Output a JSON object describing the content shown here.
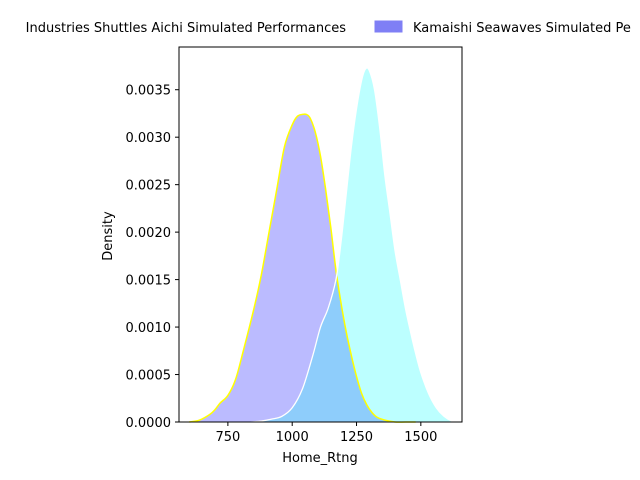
{
  "chart_data": {
    "type": "area",
    "xlabel": "Home_Rtng",
    "ylabel": "Density",
    "xlim": [
      560,
      1660
    ],
    "ylim": [
      0,
      0.00395
    ],
    "xticks": [
      750,
      1000,
      1250,
      1500
    ],
    "xtick_labels": [
      "750",
      "1000",
      "1250",
      "1500"
    ],
    "yticks": [
      0.0,
      0.0005,
      0.001,
      0.0015,
      0.002,
      0.0025,
      0.003,
      0.0035
    ],
    "ytick_labels": [
      "0.0000",
      "0.0005",
      "0.0010",
      "0.0015",
      "0.0020",
      "0.0025",
      "0.0030",
      "0.0035"
    ],
    "legend": {
      "placement": "top-center",
      "entries": [
        "Industries Shuttles Aichi Simulated Performances",
        "Kamaishi Seawaves Simulated Pe"
      ]
    },
    "series": [
      {
        "name": "Industries Shuttles Aichi Simulated Performances",
        "fill": "#bbbbff",
        "edge": "#ffff00",
        "x": [
          600,
          640,
          680,
          700,
          720,
          750,
          780,
          810,
          850,
          880,
          910,
          940,
          970,
          1000,
          1020,
          1040,
          1055,
          1070,
          1090,
          1110,
          1130,
          1150,
          1170,
          1190,
          1210,
          1230,
          1250,
          1270,
          1290,
          1310,
          1330,
          1360,
          1400,
          1440,
          1480
        ],
        "values": [
          0.0,
          2e-05,
          8e-05,
          0.00013,
          0.0002,
          0.00028,
          0.00045,
          0.00075,
          0.00118,
          0.00155,
          0.002,
          0.00245,
          0.0029,
          0.00313,
          0.00322,
          0.00324,
          0.00324,
          0.0032,
          0.00305,
          0.0028,
          0.00245,
          0.00205,
          0.0016,
          0.00125,
          0.00095,
          0.0007,
          0.00048,
          0.0003,
          0.00018,
          0.0001,
          5e-05,
          2e-05,
          0.0,
          0.0,
          0.0
        ]
      },
      {
        "name": "Kamaishi Seawaves Simulated Pe",
        "fill": "#b8ffff",
        "edge": "#ffffff",
        "x": [
          840,
          880,
          920,
          960,
          1000,
          1040,
          1080,
          1110,
          1140,
          1170,
          1190,
          1210,
          1230,
          1250,
          1270,
          1285,
          1300,
          1320,
          1340,
          1360,
          1380,
          1400,
          1420,
          1440,
          1460,
          1480,
          1500,
          1530,
          1560,
          1590,
          1620,
          1640
        ],
        "values": [
          0.0,
          1e-05,
          3e-05,
          6e-05,
          0.00015,
          0.00035,
          0.0007,
          0.001,
          0.0012,
          0.0015,
          0.0019,
          0.0024,
          0.0029,
          0.0033,
          0.0036,
          0.00372,
          0.0037,
          0.0035,
          0.0031,
          0.0026,
          0.0022,
          0.0018,
          0.0015,
          0.0012,
          0.00095,
          0.00072,
          0.00052,
          0.0003,
          0.00015,
          6e-05,
          1e-05,
          0.0
        ]
      }
    ]
  }
}
